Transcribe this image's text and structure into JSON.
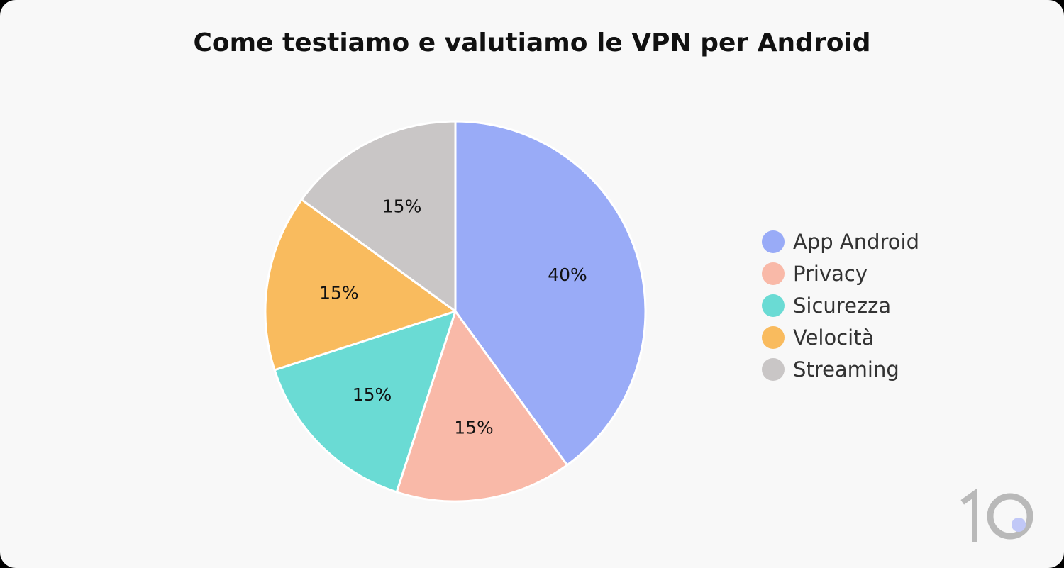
{
  "chart_data": {
    "type": "pie",
    "title": "Come testiamo e valutiamo le VPN per Android",
    "categories": [
      "App Android",
      "Privacy",
      "Sicurezza",
      "Velocità",
      "Streaming"
    ],
    "values": [
      40,
      15,
      15,
      15,
      15
    ],
    "labels": [
      "40%",
      "15%",
      "15%",
      "15%",
      "15%"
    ],
    "colors": [
      "#99abf7",
      "#f9b9a8",
      "#6adbd4",
      "#f9bb5e",
      "#c9c6c6"
    ],
    "start_angle_deg": 0,
    "direction": "clockwise",
    "legend_position": "right"
  },
  "brand": {
    "logo_icon": "ten-logo-icon",
    "logo_colors": [
      "#b9b9b9",
      "#c1c8f7"
    ]
  }
}
